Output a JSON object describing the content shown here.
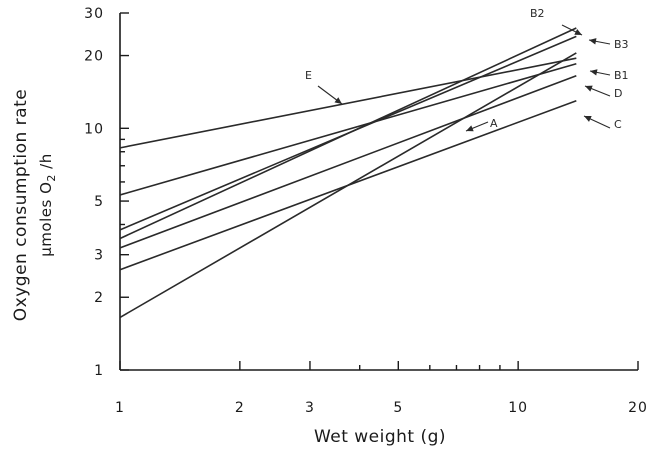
{
  "chart_data": {
    "type": "line",
    "xlabel": "Wet weight (g)",
    "ylabel_line1": "Oxygen consumption rate",
    "ylabel_line2_pre": "µmoles O",
    "ylabel_line2_sub": "2",
    "ylabel_line2_post": " /h",
    "x_scale": "log",
    "y_scale": "log",
    "xlim": [
      1,
      20
    ],
    "ylim": [
      1,
      30
    ],
    "x_ticks": [
      {
        "value": 1,
        "label": "1"
      },
      {
        "value": 2,
        "label": "2"
      },
      {
        "value": 3,
        "label": "3"
      },
      {
        "value": 5,
        "label": "5"
      },
      {
        "value": 10,
        "label": "10"
      },
      {
        "value": 20,
        "label": "20"
      }
    ],
    "y_ticks": [
      {
        "value": 1,
        "label": "1"
      },
      {
        "value": 2,
        "label": "2"
      },
      {
        "value": 3,
        "label": "3"
      },
      {
        "value": 5,
        "label": "5"
      },
      {
        "value": 10,
        "label": "10"
      },
      {
        "value": 20,
        "label": "20"
      },
      {
        "value": 30,
        "label": "30"
      }
    ],
    "series": [
      {
        "name": "E",
        "x": [
          1,
          14
        ],
        "y": [
          8.3,
          19.5
        ]
      },
      {
        "name": "B2",
        "x": [
          1,
          14
        ],
        "y": [
          3.5,
          26.0
        ]
      },
      {
        "name": "B3",
        "x": [
          1,
          14
        ],
        "y": [
          3.8,
          24.0
        ]
      },
      {
        "name": "B1",
        "x": [
          1,
          14
        ],
        "y": [
          5.3,
          18.5
        ]
      },
      {
        "name": "D",
        "x": [
          1,
          14
        ],
        "y": [
          3.2,
          16.5
        ]
      },
      {
        "name": "A",
        "x": [
          1,
          14
        ],
        "y": [
          1.65,
          20.5
        ]
      },
      {
        "name": "C",
        "x": [
          1,
          14
        ],
        "y": [
          2.6,
          13.0
        ]
      }
    ],
    "grid": false,
    "legend": "none"
  }
}
